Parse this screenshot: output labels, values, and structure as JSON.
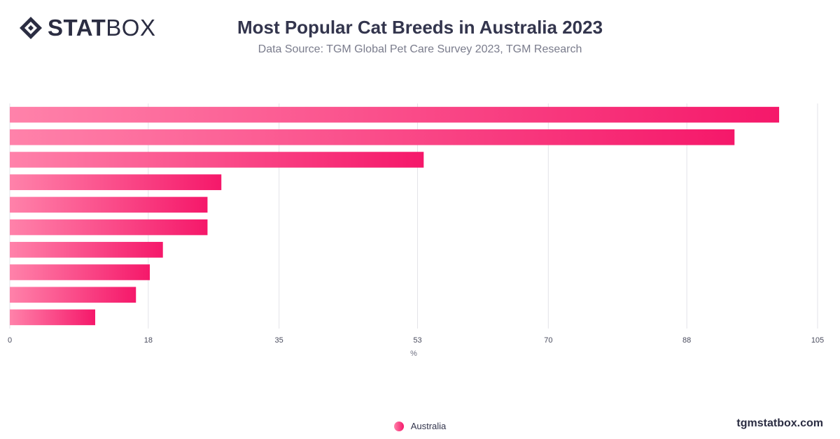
{
  "header": {
    "logo_bold": "STAT",
    "logo_light": "BOX",
    "title": "Most Popular Cat Breeds in Australia 2023",
    "subtitle": "Data Source: TGM Global Pet Care Survey 2023, TGM Research"
  },
  "footer": {
    "brand": "tgmstatbox.com"
  },
  "colors": {
    "bar_start": "#ff82aa",
    "bar_end": "#f5186a",
    "grid": "#e3e3e8",
    "text": "#33354d"
  },
  "icons": {
    "logo": "diamond-logo-icon",
    "legend": "circle-marker-icon"
  },
  "chart_data": {
    "type": "bar",
    "orientation": "horizontal",
    "title": "Most Popular Cat Breeds in Australia 2023",
    "xlabel": "%",
    "xlim": [
      0,
      105
    ],
    "xticks": [
      0,
      18,
      35,
      53,
      70,
      88,
      105
    ],
    "grid": true,
    "legend_position": "bottom-center",
    "series": [
      {
        "name": "Australia",
        "values": [
          100,
          94.2,
          53.8,
          27.5,
          25.7,
          25.7,
          19.9,
          18.2,
          16.4,
          11.1
        ]
      }
    ]
  }
}
